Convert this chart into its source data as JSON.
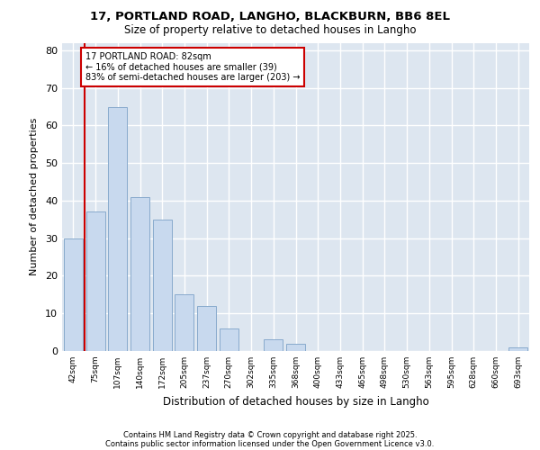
{
  "title1": "17, PORTLAND ROAD, LANGHO, BLACKBURN, BB6 8EL",
  "title2": "Size of property relative to detached houses in Langho",
  "xlabel": "Distribution of detached houses by size in Langho",
  "ylabel": "Number of detached properties",
  "categories": [
    "42sqm",
    "75sqm",
    "107sqm",
    "140sqm",
    "172sqm",
    "205sqm",
    "237sqm",
    "270sqm",
    "302sqm",
    "335sqm",
    "368sqm",
    "400sqm",
    "433sqm",
    "465sqm",
    "498sqm",
    "530sqm",
    "563sqm",
    "595sqm",
    "628sqm",
    "660sqm",
    "693sqm"
  ],
  "values": [
    30,
    37,
    65,
    41,
    35,
    15,
    12,
    6,
    0,
    3,
    2,
    0,
    0,
    0,
    0,
    0,
    0,
    0,
    0,
    0,
    1
  ],
  "bar_color": "#c8d9ee",
  "bar_edge_color": "#88aacc",
  "annotation_text": "17 PORTLAND ROAD: 82sqm\n← 16% of detached houses are smaller (39)\n83% of semi-detached houses are larger (203) →",
  "annotation_box_color": "#ffffff",
  "annotation_box_edge_color": "#cc0000",
  "vline_x_index": 1,
  "ylim": [
    0,
    82
  ],
  "yticks": [
    0,
    10,
    20,
    30,
    40,
    50,
    60,
    70,
    80
  ],
  "plot_bg_color": "#dde6f0",
  "fig_bg_color": "#ffffff",
  "grid_color": "#ffffff",
  "footer1": "Contains HM Land Registry data © Crown copyright and database right 2025.",
  "footer2": "Contains public sector information licensed under the Open Government Licence v3.0."
}
